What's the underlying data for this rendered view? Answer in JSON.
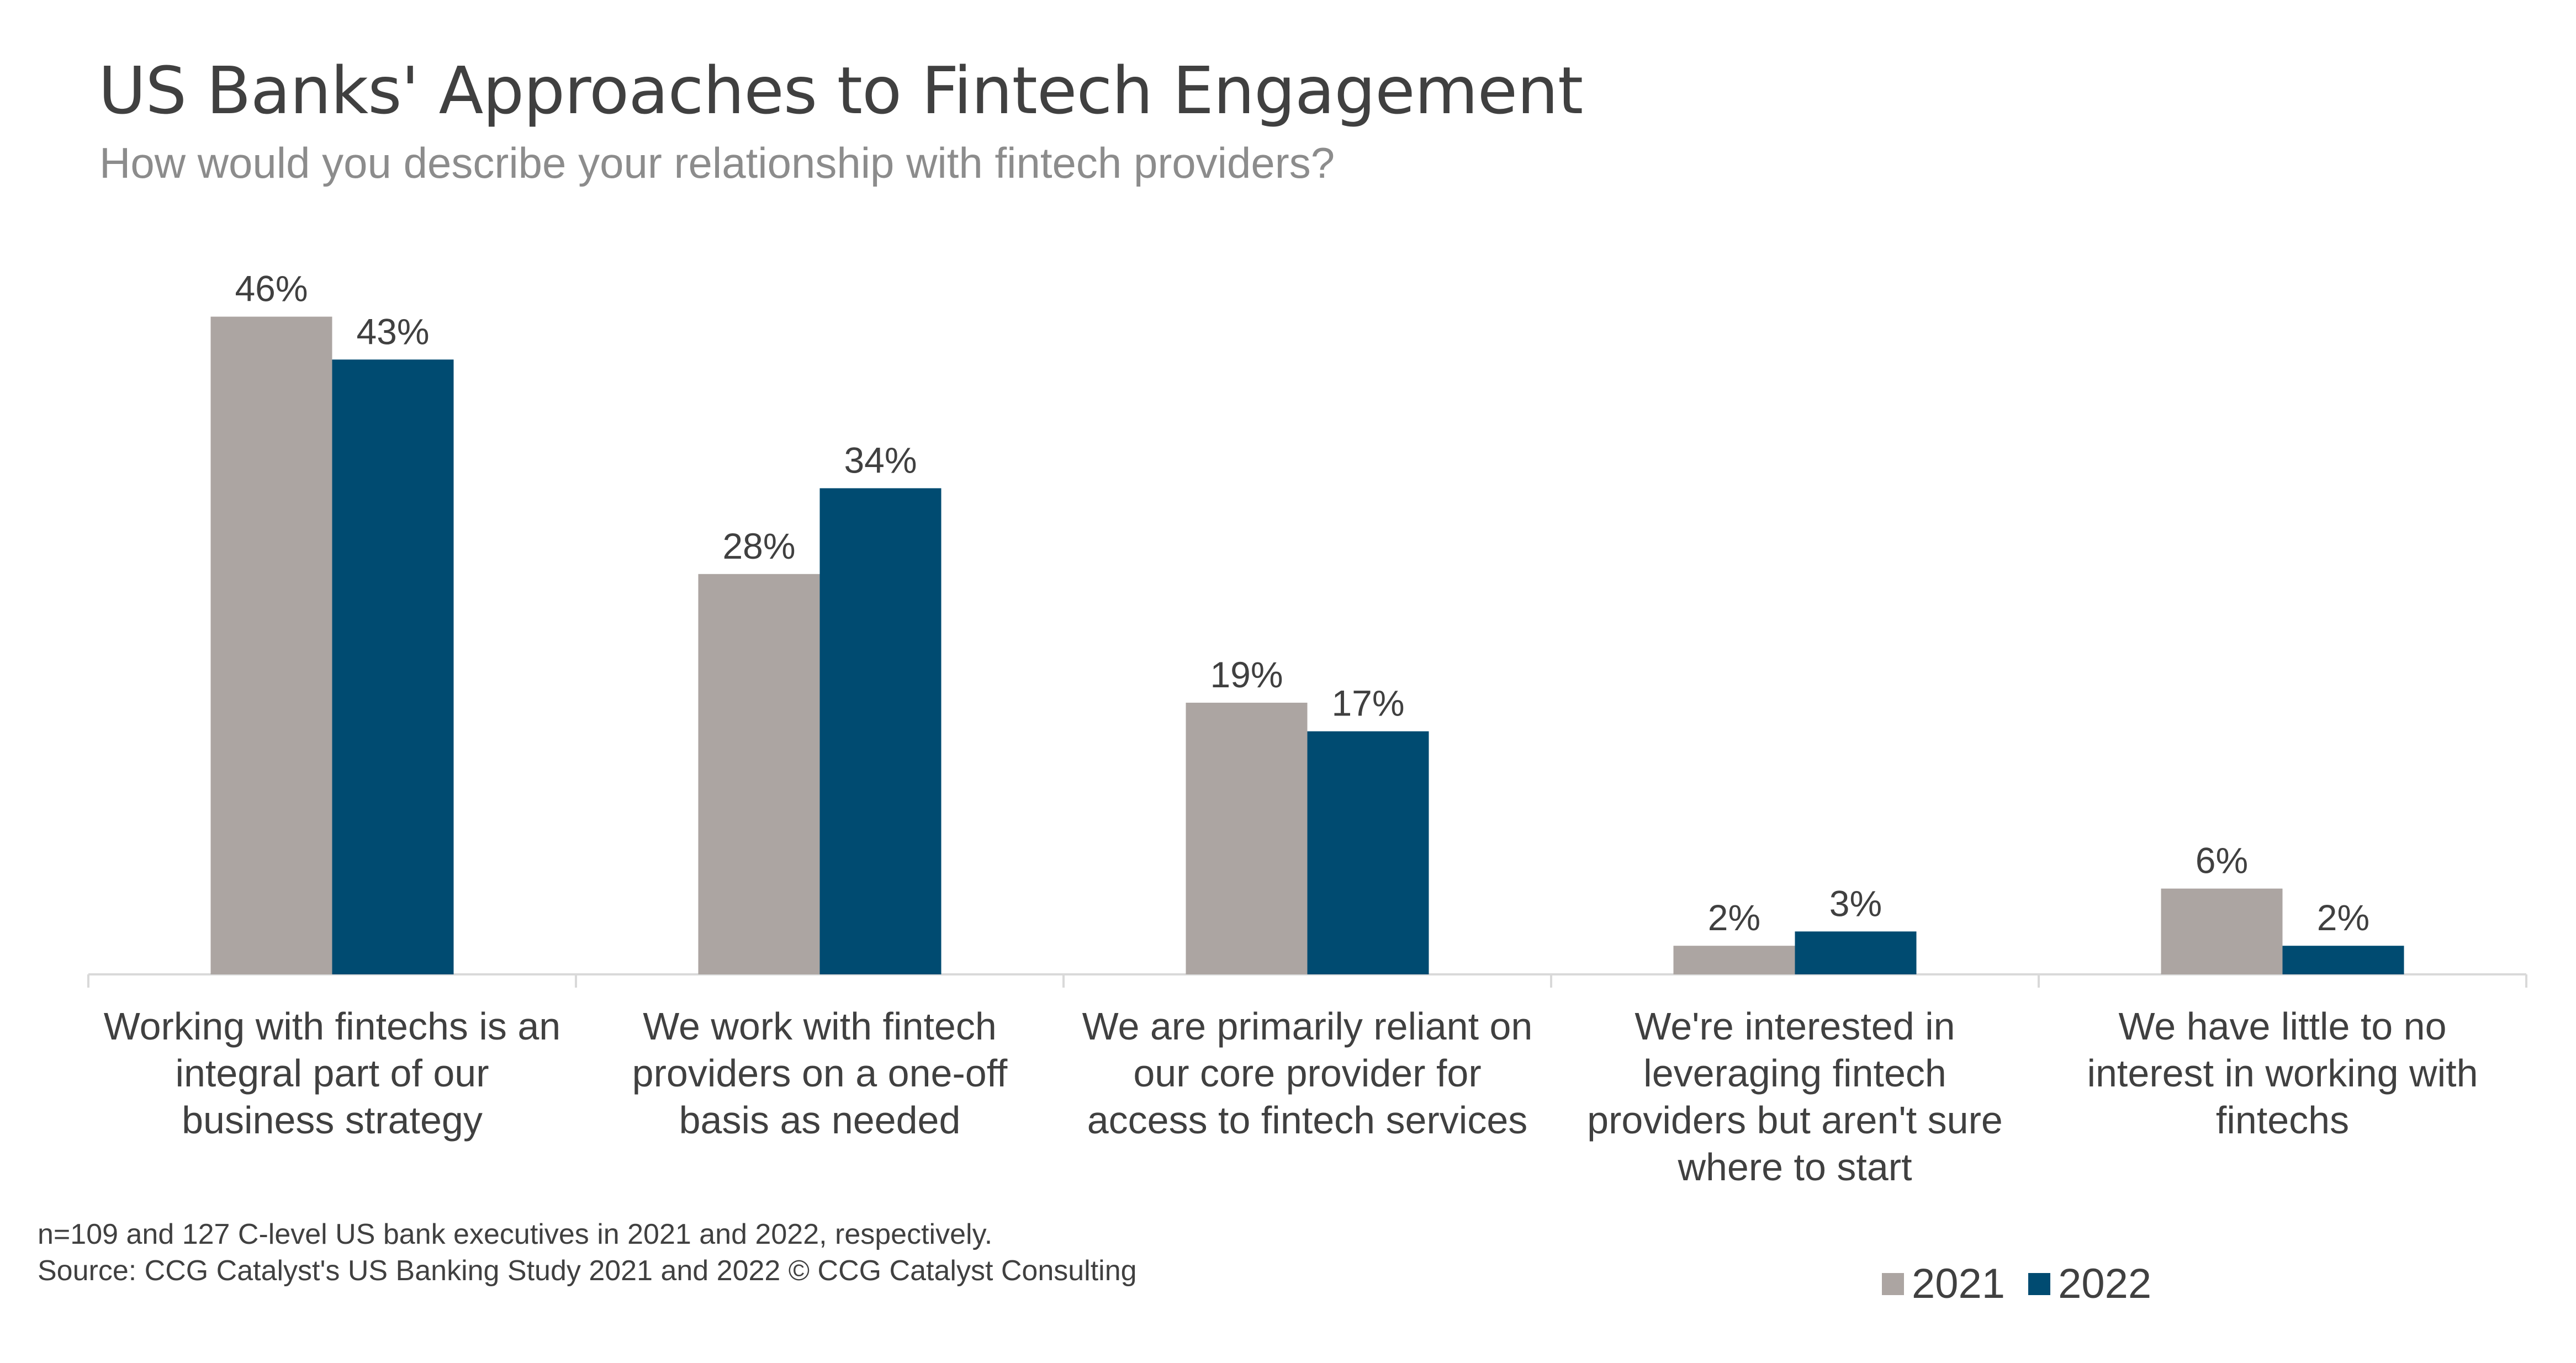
{
  "title": "US Banks' Approaches to Fintech Engagement",
  "subtitle": "How would you describe your relationship with fintech providers?",
  "footnotes": {
    "sample": "n=109 and 127 C-level US bank executives in 2021 and 2022, respectively.",
    "source": "Source: CCG Catalyst's US Banking Study 2021 and 2022 © CCG Catalyst Consulting"
  },
  "colors": {
    "series_2021": "#aca5a2",
    "series_2022": "#004b71",
    "axis": "#d9d9d9",
    "label": "#404040"
  },
  "chart_data": {
    "type": "bar",
    "title": "US Banks' Approaches to Fintech Engagement",
    "subtitle": "How would you describe your relationship with fintech providers?",
    "xlabel": "",
    "ylabel": "",
    "ylim": [
      0,
      50
    ],
    "grid": false,
    "legend_position": "bottom-right",
    "categories": [
      [
        "Working with fintechs is an",
        "integral part of our",
        "business strategy"
      ],
      [
        "We work with fintech",
        "providers on a one-off",
        "basis as needed"
      ],
      [
        "We are primarily reliant on",
        "our core provider for",
        "access to fintech services"
      ],
      [
        "We're interested in",
        "leveraging fintech",
        "providers but aren't sure",
        "where to start"
      ],
      [
        "We have little to no",
        "interest in working with",
        "fintechs"
      ]
    ],
    "series": [
      {
        "name": "2021",
        "values": [
          46,
          28,
          19,
          2,
          6
        ],
        "labels": [
          "46%",
          "28%",
          "19%",
          "2%",
          "6%"
        ]
      },
      {
        "name": "2022",
        "values": [
          43,
          34,
          17,
          3,
          2
        ],
        "labels": [
          "43%",
          "34%",
          "17%",
          "3%",
          "2%"
        ]
      }
    ]
  }
}
